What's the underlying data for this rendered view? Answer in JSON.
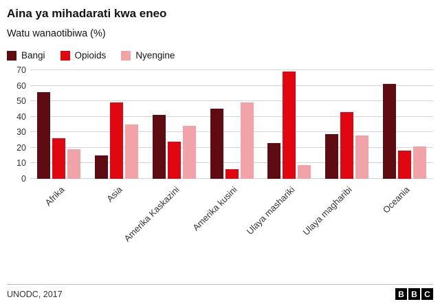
{
  "chart_data": {
    "type": "bar",
    "title": "Aina ya mihadarati kwa eneo",
    "subtitle": "Watu wanaotibiwa (%)",
    "categories": [
      "Afrika",
      "Asia",
      "Amerika Kaskazini",
      "Amerika kusini",
      "Ulaya mashariki",
      "Ulaya magharibi",
      "Oceania"
    ],
    "series": [
      {
        "name": "Bangi",
        "color": "#5e0b12",
        "values": [
          56,
          15,
          41,
          45,
          23,
          29,
          61
        ]
      },
      {
        "name": "Opioids",
        "color": "#e00710",
        "values": [
          26,
          49,
          24,
          6,
          69,
          43,
          18
        ]
      },
      {
        "name": "Nyengine",
        "color": "#f2a3a8",
        "values": [
          19,
          35,
          34,
          49,
          9,
          28,
          21
        ]
      }
    ],
    "ylim": [
      0,
      70
    ],
    "ytick_step": 10,
    "grid": true,
    "legend_position": "top"
  },
  "footer": {
    "source": "UNODC, 2017",
    "logo_letters": [
      "B",
      "B",
      "C"
    ]
  }
}
